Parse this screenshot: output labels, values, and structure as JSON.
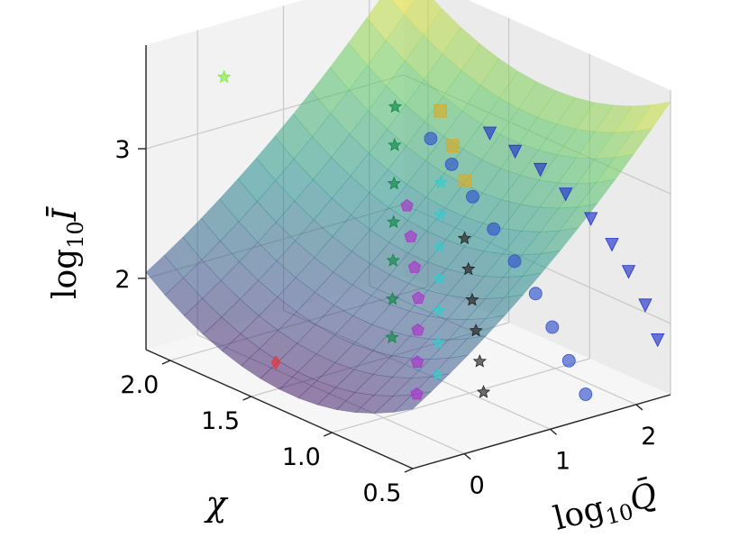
{
  "chart_data": {
    "type": "scatter",
    "subtype": "3d-surface-with-scatter",
    "title": "",
    "x_axis": {
      "label": "log10 Q̄",
      "label_main": "log",
      "label_sub": "10",
      "label_var": "Q̄",
      "ticks": [
        "0",
        "1",
        "2"
      ],
      "range": [
        -0.6,
        2.4
      ]
    },
    "y_axis": {
      "label": "χ",
      "ticks": [
        "0.5",
        "1.0",
        "1.5",
        "2.0"
      ],
      "range": [
        0.5,
        2.15
      ]
    },
    "z_axis": {
      "label": "log10 Ī",
      "label_main": "log",
      "label_sub": "10",
      "label_var": "Ī",
      "ticks": [
        "2",
        "3"
      ],
      "range": [
        1.45,
        3.8
      ]
    },
    "grid": true,
    "surface": {
      "colormap": "viridis",
      "opacity": 0.55,
      "description_of_shape": "surface rising with log10 Q and with distance of χ from ~1.3"
    },
    "series": [
      {
        "marker": "triangle-down",
        "color": "#2233cc",
        "points": [
          [
            2.25,
            0.5,
            1.9
          ],
          [
            2.2,
            0.55,
            2.15
          ],
          [
            2.1,
            0.6,
            2.4
          ],
          [
            2.0,
            0.65,
            2.6
          ],
          [
            1.85,
            0.7,
            2.8
          ],
          [
            1.65,
            0.75,
            3.0
          ],
          [
            1.45,
            0.8,
            3.2
          ],
          [
            1.25,
            0.85,
            3.35
          ],
          [
            1.05,
            0.9,
            3.5
          ]
        ]
      },
      {
        "marker": "circle",
        "color": "#3355cc",
        "points": [
          [
            1.6,
            0.6,
            1.55
          ],
          [
            1.5,
            0.65,
            1.8
          ],
          [
            1.4,
            0.7,
            2.05
          ],
          [
            1.3,
            0.75,
            2.3
          ],
          [
            1.15,
            0.8,
            2.55
          ],
          [
            1.0,
            0.85,
            2.8
          ],
          [
            0.85,
            0.9,
            3.05
          ],
          [
            0.7,
            0.95,
            3.3
          ],
          [
            0.55,
            1.0,
            3.5
          ]
        ]
      },
      {
        "marker": "star",
        "color": "#222222",
        "points": [
          [
            0.6,
            0.7,
            1.7
          ],
          [
            0.65,
            0.75,
            1.9
          ],
          [
            0.7,
            0.8,
            2.1
          ],
          [
            0.75,
            0.85,
            2.3
          ],
          [
            0.8,
            0.9,
            2.5
          ],
          [
            0.85,
            0.95,
            2.7
          ]
        ]
      },
      {
        "marker": "pentagon",
        "color": "#aa33cc",
        "points": [
          [
            0.2,
            0.9,
            1.65
          ],
          [
            0.3,
            0.95,
            1.85
          ],
          [
            0.4,
            1.0,
            2.05
          ],
          [
            0.5,
            1.05,
            2.25
          ],
          [
            0.55,
            1.1,
            2.45
          ],
          [
            0.6,
            1.15,
            2.65
          ],
          [
            0.65,
            1.2,
            2.85
          ]
        ]
      },
      {
        "marker": "star",
        "color": "#33cccc",
        "points": [
          [
            0.35,
            0.85,
            1.8
          ],
          [
            0.45,
            0.9,
            2.0
          ],
          [
            0.55,
            0.95,
            2.2
          ],
          [
            0.65,
            1.0,
            2.4
          ],
          [
            0.75,
            1.05,
            2.6
          ],
          [
            0.85,
            1.1,
            2.8
          ],
          [
            0.95,
            1.15,
            3.0
          ]
        ]
      },
      {
        "marker": "star",
        "color": "#118844",
        "points": [
          [
            0.1,
            1.0,
            2.05
          ],
          [
            0.2,
            1.05,
            2.3
          ],
          [
            0.3,
            1.1,
            2.55
          ],
          [
            0.4,
            1.15,
            2.8
          ],
          [
            0.5,
            1.2,
            3.05
          ],
          [
            0.6,
            1.25,
            3.3
          ],
          [
            0.7,
            1.3,
            3.55
          ]
        ]
      },
      {
        "marker": "square",
        "color": "#ddaa22",
        "points": [
          [
            0.95,
            1.0,
            3.1
          ],
          [
            0.9,
            1.05,
            3.35
          ],
          [
            0.85,
            1.1,
            3.6
          ]
        ]
      },
      {
        "marker": "diamond",
        "color": "#ee3333",
        "points": [
          [
            -0.5,
            1.4,
            1.75
          ]
        ]
      },
      {
        "marker": "star",
        "color": "#77ee33",
        "points": [
          [
            -0.35,
            1.8,
            3.7
          ]
        ]
      }
    ]
  }
}
